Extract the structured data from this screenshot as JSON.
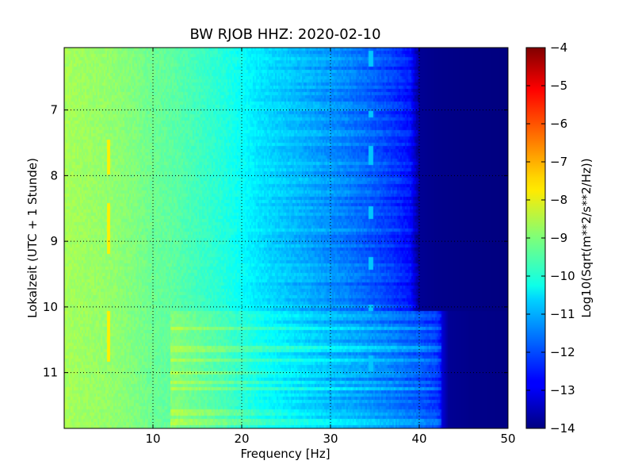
{
  "chart_data": {
    "type": "heatmap",
    "title": "BW RJOB HHZ: 2020-02-10",
    "xlabel": "Frequency [Hz]",
    "ylabel": "Lokalzeit (UTC + 1 Stunde)",
    "xlim": [
      0,
      50
    ],
    "ylim": [
      11.85,
      6.05
    ],
    "y_inverted": true,
    "xticks": [
      10,
      20,
      30,
      40,
      50
    ],
    "yticks": [
      7,
      8,
      9,
      10,
      11
    ],
    "grid": true,
    "colormap": "jet",
    "colorbar": {
      "label": "Log10(Sqrt(m**2/s**2/Hz))",
      "range": [
        -14,
        -4
      ],
      "ticks": [
        -4,
        -5,
        -6,
        -7,
        -8,
        -9,
        -10,
        -11,
        -12,
        -13,
        -14
      ]
    },
    "spectrum_profile": {
      "frequency": [
        0,
        2,
        5,
        8,
        10,
        12,
        15,
        18,
        20,
        22,
        25,
        28,
        30,
        32,
        35,
        37,
        38,
        39,
        40,
        42,
        45,
        50
      ],
      "level": [
        -8.6,
        -8.7,
        -8.8,
        -9.0,
        -9.2,
        -9.3,
        -9.6,
        -9.9,
        -10.2,
        -10.5,
        -10.8,
        -11.1,
        -11.3,
        -11.5,
        -11.9,
        -12.2,
        -12.4,
        -12.6,
        -13.8,
        -13.9,
        -13.95,
        -14.0
      ]
    },
    "features": {
      "line_5hz": {
        "frequency": 5,
        "level": -7.6,
        "segments": [
          [
            7.45,
            8.0
          ],
          [
            8.4,
            9.2
          ],
          [
            10.05,
            10.85
          ]
        ]
      },
      "line_34hz": {
        "frequency": 34.5,
        "level": -10.8,
        "segments": [
          [
            6.1,
            6.35
          ],
          [
            7.0,
            7.1
          ],
          [
            7.55,
            7.85
          ],
          [
            8.45,
            8.65
          ],
          [
            9.25,
            9.45
          ],
          [
            9.95,
            10.05
          ],
          [
            10.75,
            11.0
          ]
        ]
      },
      "noisy_period": {
        "start": 10.07,
        "end": 11.85,
        "extra_bandwidth_hz": 2.5,
        "level_increase": 0.7
      }
    }
  }
}
